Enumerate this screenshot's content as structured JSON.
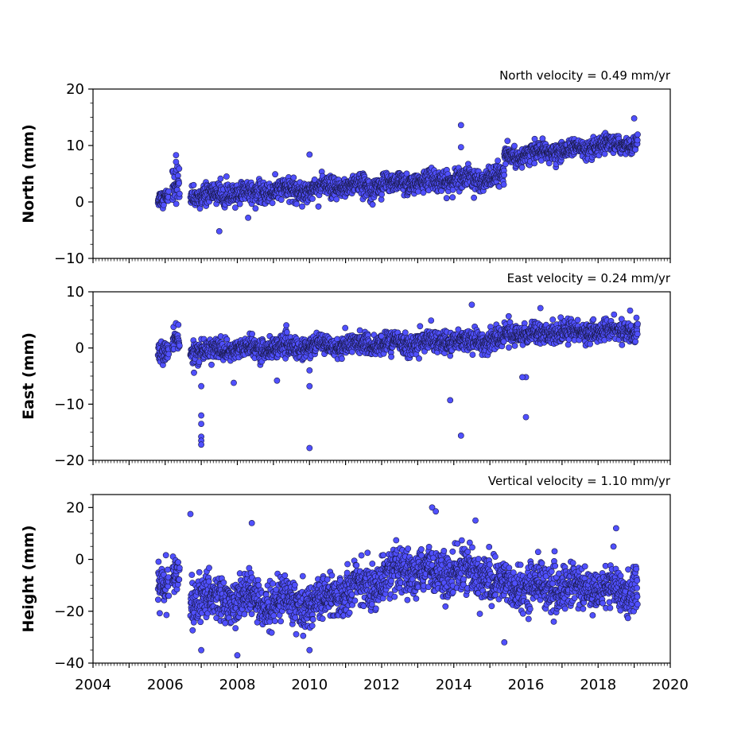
{
  "chart_data": [
    {
      "type": "scatter",
      "annotation": "North velocity = 0.49 mm/yr",
      "ylabel": "North (mm)",
      "xlim": [
        2004,
        2020
      ],
      "ylim": [
        -10,
        20
      ],
      "yticks": [
        -10,
        0,
        10,
        20
      ],
      "ytick_labels": [
        "−10",
        "0",
        "10",
        "20"
      ],
      "color": "#5050ff",
      "data_segments": [
        {
          "x_range": [
            2005.8,
            2006.1
          ],
          "trend": [
            0.9,
            1.0
          ],
          "spread": 1.0
        },
        {
          "x_range": [
            2006.2,
            2006.4
          ],
          "trend": [
            2.5,
            2.5
          ],
          "spread": 2.3
        },
        {
          "x_range": [
            2006.7,
            2015.4
          ],
          "trend": [
            1.0,
            4.5
          ],
          "spread": 1.3
        },
        {
          "x_range": [
            2015.4,
            2019.1
          ],
          "trend": [
            8.0,
            10.5
          ],
          "spread": 1.1
        }
      ],
      "outliers": [
        [
          2007.5,
          -5.2
        ],
        [
          2008.3,
          -2.8
        ],
        [
          2014.2,
          13.6
        ],
        [
          2014.2,
          9.7
        ],
        [
          2019.0,
          14.8
        ],
        [
          2010.0,
          8.4
        ],
        [
          2006.3,
          8.3
        ],
        [
          2006.3,
          7.1
        ]
      ]
    },
    {
      "type": "scatter",
      "annotation": "East velocity = 0.24 mm/yr",
      "ylabel": "East (mm)",
      "xlim": [
        2004,
        2020
      ],
      "ylim": [
        -20,
        10
      ],
      "yticks": [
        -20,
        -10,
        0,
        10
      ],
      "ytick_labels": [
        "−20",
        "−10",
        "0",
        "10"
      ],
      "color": "#5050ff",
      "data_segments": [
        {
          "x_range": [
            2005.8,
            2006.1
          ],
          "trend": [
            -0.5,
            -0.5
          ],
          "spread": 1.2
        },
        {
          "x_range": [
            2006.2,
            2006.4
          ],
          "trend": [
            1.0,
            1.0
          ],
          "spread": 1.5
        },
        {
          "x_range": [
            2006.7,
            2015.4
          ],
          "trend": [
            -0.5,
            1.5
          ],
          "spread": 1.3
        },
        {
          "x_range": [
            2015.4,
            2019.1
          ],
          "trend": [
            2.5,
            3.2
          ],
          "spread": 1.3
        }
      ],
      "outliers": [
        [
          2007.0,
          -12.0
        ],
        [
          2007.0,
          -13.5
        ],
        [
          2007.0,
          -15.8
        ],
        [
          2007.0,
          -16.5
        ],
        [
          2007.0,
          -17.2
        ],
        [
          2010.0,
          -17.8
        ],
        [
          2010.0,
          -6.8
        ],
        [
          2010.0,
          -4.0
        ],
        [
          2013.9,
          -9.3
        ],
        [
          2014.2,
          -15.6
        ],
        [
          2016.0,
          -12.3
        ],
        [
          2016.0,
          -5.2
        ],
        [
          2015.9,
          -5.2
        ],
        [
          2006.8,
          -4.4
        ],
        [
          2007.0,
          -6.8
        ],
        [
          2007.9,
          -6.2
        ],
        [
          2009.1,
          -5.8
        ],
        [
          2014.5,
          7.7
        ],
        [
          2016.4,
          7.1
        ]
      ]
    },
    {
      "type": "scatter",
      "annotation": "Vertical velocity = 1.10 mm/yr",
      "ylabel": "Height (mm)",
      "xlabel": "",
      "xlim": [
        2004,
        2020
      ],
      "ylim": [
        -40,
        25
      ],
      "yticks": [
        -40,
        -20,
        0,
        20
      ],
      "ytick_labels": [
        "−40",
        "−20",
        "0",
        "20"
      ],
      "xticks": [
        2004,
        2006,
        2008,
        2010,
        2012,
        2014,
        2016,
        2018,
        2020
      ],
      "xtick_labels": [
        "2004",
        "2006",
        "2008",
        "2010",
        "2012",
        "2014",
        "2016",
        "2018",
        "2020"
      ],
      "color": "#5050ff",
      "data_segments": [
        {
          "x_range": [
            2005.8,
            2006.1
          ],
          "trend": [
            -8,
            -10
          ],
          "spread": 6
        },
        {
          "x_range": [
            2006.2,
            2006.4
          ],
          "trend": [
            -8,
            -8
          ],
          "spread": 6
        },
        {
          "x_range": [
            2006.7,
            2010.5
          ],
          "trend": [
            -15,
            -17
          ],
          "spread": 6
        },
        {
          "x_range": [
            2010.5,
            2012.5
          ],
          "trend": [
            -14,
            -6
          ],
          "spread": 6
        },
        {
          "x_range": [
            2012.5,
            2015.0
          ],
          "trend": [
            -5,
            -5
          ],
          "spread": 6
        },
        {
          "x_range": [
            2015.0,
            2019.1
          ],
          "trend": [
            -10,
            -12
          ],
          "spread": 6
        }
      ],
      "outliers": [
        [
          2006.7,
          17.5
        ],
        [
          2008.4,
          14.0
        ],
        [
          2013.4,
          20.0
        ],
        [
          2013.5,
          18.5
        ],
        [
          2014.6,
          15.0
        ],
        [
          2018.5,
          12.0
        ],
        [
          2008.0,
          -37.0
        ],
        [
          2010.0,
          -35.0
        ],
        [
          2015.4,
          -32.0
        ],
        [
          2007.0,
          -35.0
        ]
      ]
    }
  ]
}
